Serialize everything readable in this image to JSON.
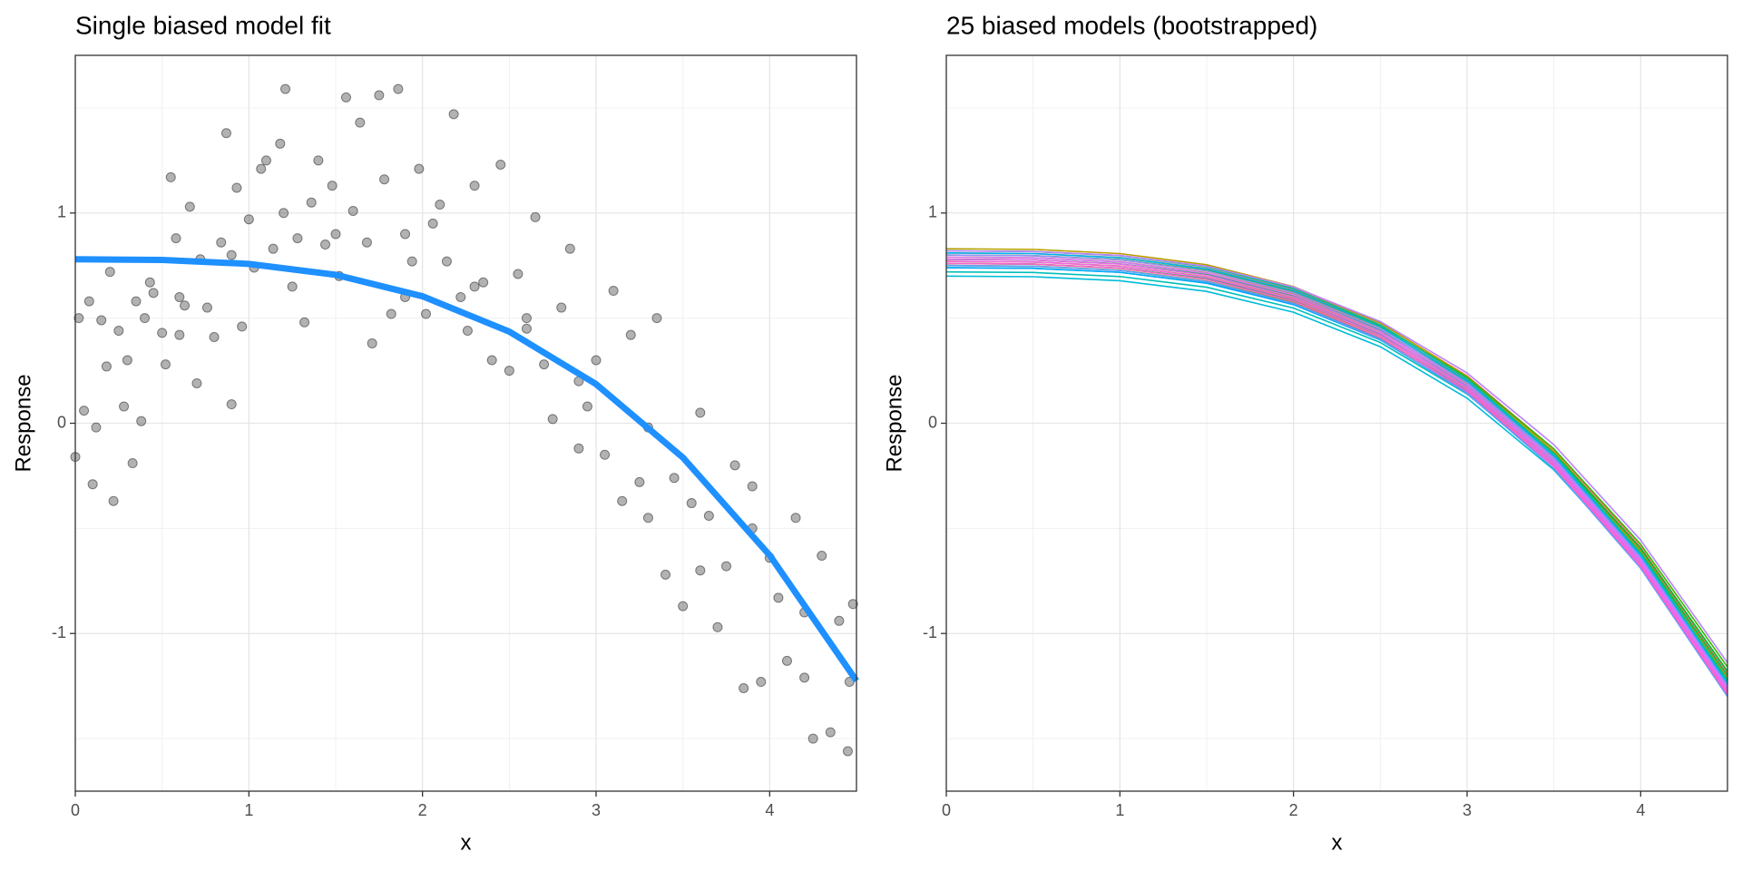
{
  "chart_data": [
    {
      "type": "scatter",
      "title": "Single biased model fit",
      "xlabel": "x",
      "ylabel": "Response",
      "xlim": [
        0,
        4.5
      ],
      "ylim": [
        -1.75,
        1.75
      ],
      "xticks": [
        0,
        1,
        2,
        3,
        4
      ],
      "yticks": [
        -1,
        0,
        1
      ],
      "grid": true,
      "series": [
        {
          "type": "scatter",
          "color": "#555555",
          "x": [
            0.0,
            0.02,
            0.05,
            0.08,
            0.1,
            0.12,
            0.15,
            0.18,
            0.2,
            0.22,
            0.25,
            0.28,
            0.3,
            0.33,
            0.35,
            0.38,
            0.4,
            0.43,
            0.45,
            0.5,
            0.52,
            0.55,
            0.58,
            0.6,
            0.63,
            0.66,
            0.7,
            0.72,
            0.76,
            0.8,
            0.84,
            0.87,
            0.9,
            0.93,
            0.96,
            1.0,
            1.03,
            1.07,
            1.1,
            1.14,
            1.18,
            1.21,
            1.25,
            1.28,
            1.32,
            1.36,
            1.4,
            1.44,
            1.48,
            1.52,
            1.56,
            1.6,
            1.64,
            1.68,
            1.71,
            1.75,
            1.78,
            1.82,
            1.86,
            1.9,
            1.94,
            1.98,
            2.02,
            2.06,
            2.1,
            2.14,
            2.18,
            2.22,
            2.26,
            2.3,
            2.35,
            2.4,
            2.45,
            2.5,
            2.55,
            2.6,
            2.65,
            2.7,
            2.75,
            2.8,
            2.85,
            2.9,
            2.95,
            3.0,
            3.05,
            3.1,
            3.15,
            3.2,
            3.25,
            3.3,
            3.35,
            3.4,
            3.45,
            3.5,
            3.55,
            3.6,
            3.65,
            3.7,
            3.75,
            3.8,
            3.85,
            3.9,
            3.95,
            4.0,
            4.05,
            4.1,
            4.15,
            4.2,
            4.25,
            4.3,
            4.35,
            4.4,
            4.45,
            4.48,
            4.46,
            4.2,
            3.9,
            3.6,
            3.3,
            2.9,
            2.6,
            2.3,
            1.9,
            1.5,
            1.2,
            0.9,
            0.6
          ],
          "values": [
            -0.16,
            0.5,
            0.06,
            0.58,
            -0.29,
            -0.02,
            0.49,
            0.27,
            0.72,
            -0.37,
            0.44,
            0.08,
            0.3,
            -0.19,
            0.58,
            0.01,
            0.5,
            0.67,
            0.62,
            0.43,
            0.28,
            1.17,
            0.88,
            0.42,
            0.56,
            1.03,
            0.19,
            0.78,
            0.55,
            0.41,
            0.86,
            1.38,
            0.09,
            1.12,
            0.46,
            0.97,
            0.74,
            1.21,
            1.25,
            0.83,
            1.33,
            1.59,
            0.65,
            0.88,
            0.48,
            1.05,
            1.25,
            0.85,
            1.13,
            0.7,
            1.55,
            1.01,
            1.43,
            0.86,
            0.38,
            1.56,
            1.16,
            0.52,
            1.59,
            0.9,
            0.77,
            1.21,
            0.52,
            0.95,
            1.04,
            0.77,
            1.47,
            0.6,
            0.44,
            1.13,
            0.67,
            0.3,
            1.23,
            0.25,
            0.71,
            0.45,
            0.98,
            0.28,
            0.02,
            0.55,
            0.83,
            -0.12,
            0.08,
            0.3,
            -0.15,
            0.63,
            -0.37,
            0.42,
            -0.28,
            -0.02,
            0.5,
            -0.72,
            -0.26,
            -0.87,
            -0.38,
            0.05,
            -0.44,
            -0.97,
            -0.68,
            -0.2,
            -1.26,
            -0.3,
            -1.23,
            -0.64,
            -0.83,
            -1.13,
            -0.45,
            -1.21,
            -1.5,
            -0.63,
            -1.47,
            -0.94,
            -1.56,
            -0.86,
            -1.23,
            -0.9,
            -0.5,
            -0.7,
            -0.45,
            0.2,
            0.5,
            0.65,
            0.6,
            0.9,
            1.0,
            0.8,
            0.6
          ]
        },
        {
          "type": "line",
          "color": "#1e90ff",
          "x": [
            0,
            0.5,
            1,
            1.5,
            2,
            2.5,
            3,
            3.5,
            4,
            4.5
          ],
          "values": [
            0.78,
            0.777,
            0.758,
            0.706,
            0.604,
            0.436,
            0.186,
            -0.163,
            -0.628,
            -1.225
          ]
        }
      ]
    },
    {
      "type": "line",
      "title": "25 biased models (bootstrapped)",
      "xlabel": "x",
      "ylabel": "Response",
      "xlim": [
        0,
        4.5
      ],
      "ylim": [
        -1.75,
        1.75
      ],
      "xticks": [
        0,
        1,
        2,
        3,
        4
      ],
      "yticks": [
        -1,
        0,
        1
      ],
      "grid": true,
      "x": [
        0,
        0.5,
        1,
        1.5,
        2,
        2.5,
        3,
        3.5,
        4,
        4.5
      ],
      "series": [
        {
          "color": "#F8766D",
          "values": [
            0.82,
            0.817,
            0.798,
            0.746,
            0.644,
            0.476,
            0.226,
            -0.123,
            -0.588,
            -1.185
          ]
        },
        {
          "color": "#F07E4D",
          "values": [
            0.81,
            0.807,
            0.788,
            0.736,
            0.634,
            0.466,
            0.216,
            -0.133,
            -0.598,
            -1.195
          ]
        },
        {
          "color": "#E58700",
          "values": [
            0.8,
            0.797,
            0.778,
            0.726,
            0.624,
            0.456,
            0.206,
            -0.143,
            -0.608,
            -1.205
          ]
        },
        {
          "color": "#D89000",
          "values": [
            0.79,
            0.787,
            0.768,
            0.716,
            0.614,
            0.446,
            0.196,
            -0.153,
            -0.618,
            -1.215
          ]
        },
        {
          "color": "#C99800",
          "values": [
            0.78,
            0.777,
            0.758,
            0.706,
            0.604,
            0.436,
            0.186,
            -0.163,
            -0.628,
            -1.225
          ]
        },
        {
          "color": "#B79F00",
          "values": [
            0.83,
            0.827,
            0.807,
            0.754,
            0.65,
            0.478,
            0.222,
            -0.135,
            -0.61,
            -1.22
          ]
        },
        {
          "color": "#A3A500",
          "values": [
            0.77,
            0.767,
            0.748,
            0.696,
            0.594,
            0.426,
            0.176,
            -0.173,
            -0.638,
            -1.235
          ]
        },
        {
          "color": "#8CAB00",
          "values": [
            0.76,
            0.757,
            0.738,
            0.686,
            0.584,
            0.416,
            0.166,
            -0.183,
            -0.648,
            -1.245
          ]
        },
        {
          "color": "#6BB100",
          "values": [
            0.75,
            0.747,
            0.728,
            0.676,
            0.574,
            0.406,
            0.156,
            -0.193,
            -0.658,
            -1.255
          ]
        },
        {
          "color": "#39B600",
          "values": [
            0.8,
            0.797,
            0.778,
            0.727,
            0.628,
            0.464,
            0.219,
            -0.122,
            -0.576,
            -1.159
          ]
        },
        {
          "color": "#00BA38",
          "values": [
            0.78,
            0.777,
            0.758,
            0.707,
            0.608,
            0.444,
            0.199,
            -0.142,
            -0.596,
            -1.179
          ]
        },
        {
          "color": "#00BD5C",
          "values": [
            0.76,
            0.757,
            0.738,
            0.687,
            0.588,
            0.424,
            0.179,
            -0.162,
            -0.616,
            -1.199
          ]
        },
        {
          "color": "#00BF7D",
          "values": [
            0.74,
            0.737,
            0.718,
            0.667,
            0.568,
            0.404,
            0.159,
            -0.182,
            -0.636,
            -1.219
          ]
        },
        {
          "color": "#00C19A",
          "values": [
            0.82,
            0.817,
            0.797,
            0.744,
            0.64,
            0.468,
            0.212,
            -0.145,
            -0.62,
            -1.23
          ]
        },
        {
          "color": "#00C0B8",
          "values": [
            0.72,
            0.717,
            0.698,
            0.647,
            0.548,
            0.384,
            0.139,
            -0.202,
            -0.656,
            -1.239
          ]
        },
        {
          "color": "#00BCD8",
          "values": [
            0.7,
            0.697,
            0.678,
            0.627,
            0.528,
            0.364,
            0.119,
            -0.222,
            -0.676,
            -1.259
          ]
        },
        {
          "color": "#00B4F0",
          "values": [
            0.81,
            0.807,
            0.787,
            0.734,
            0.63,
            0.458,
            0.202,
            -0.155,
            -0.63,
            -1.24
          ]
        },
        {
          "color": "#00A9FF",
          "values": [
            0.74,
            0.737,
            0.718,
            0.666,
            0.564,
            0.396,
            0.146,
            -0.203,
            -0.668,
            -1.265
          ]
        },
        {
          "color": "#619CFF",
          "values": [
            0.75,
            0.747,
            0.727,
            0.674,
            0.57,
            0.398,
            0.142,
            -0.215,
            -0.69,
            -1.3
          ]
        },
        {
          "color": "#9590FF",
          "values": [
            0.8,
            0.797,
            0.777,
            0.724,
            0.62,
            0.448,
            0.192,
            -0.165,
            -0.64,
            -1.25
          ]
        },
        {
          "color": "#B983FF",
          "values": [
            0.82,
            0.817,
            0.798,
            0.747,
            0.648,
            0.484,
            0.239,
            -0.102,
            -0.556,
            -1.139
          ]
        },
        {
          "color": "#D575FE",
          "values": [
            0.79,
            0.787,
            0.767,
            0.714,
            0.61,
            0.438,
            0.182,
            -0.175,
            -0.65,
            -1.26
          ]
        },
        {
          "color": "#E76BF3",
          "values": [
            0.78,
            0.777,
            0.757,
            0.704,
            0.6,
            0.428,
            0.172,
            -0.185,
            -0.66,
            -1.27
          ]
        },
        {
          "color": "#F564E3",
          "values": [
            0.77,
            0.767,
            0.747,
            0.694,
            0.59,
            0.418,
            0.162,
            -0.195,
            -0.67,
            -1.28
          ]
        },
        {
          "color": "#FF61C9",
          "values": [
            0.76,
            0.757,
            0.737,
            0.684,
            0.58,
            0.408,
            0.152,
            -0.205,
            -0.68,
            -1.29
          ]
        }
      ]
    }
  ]
}
